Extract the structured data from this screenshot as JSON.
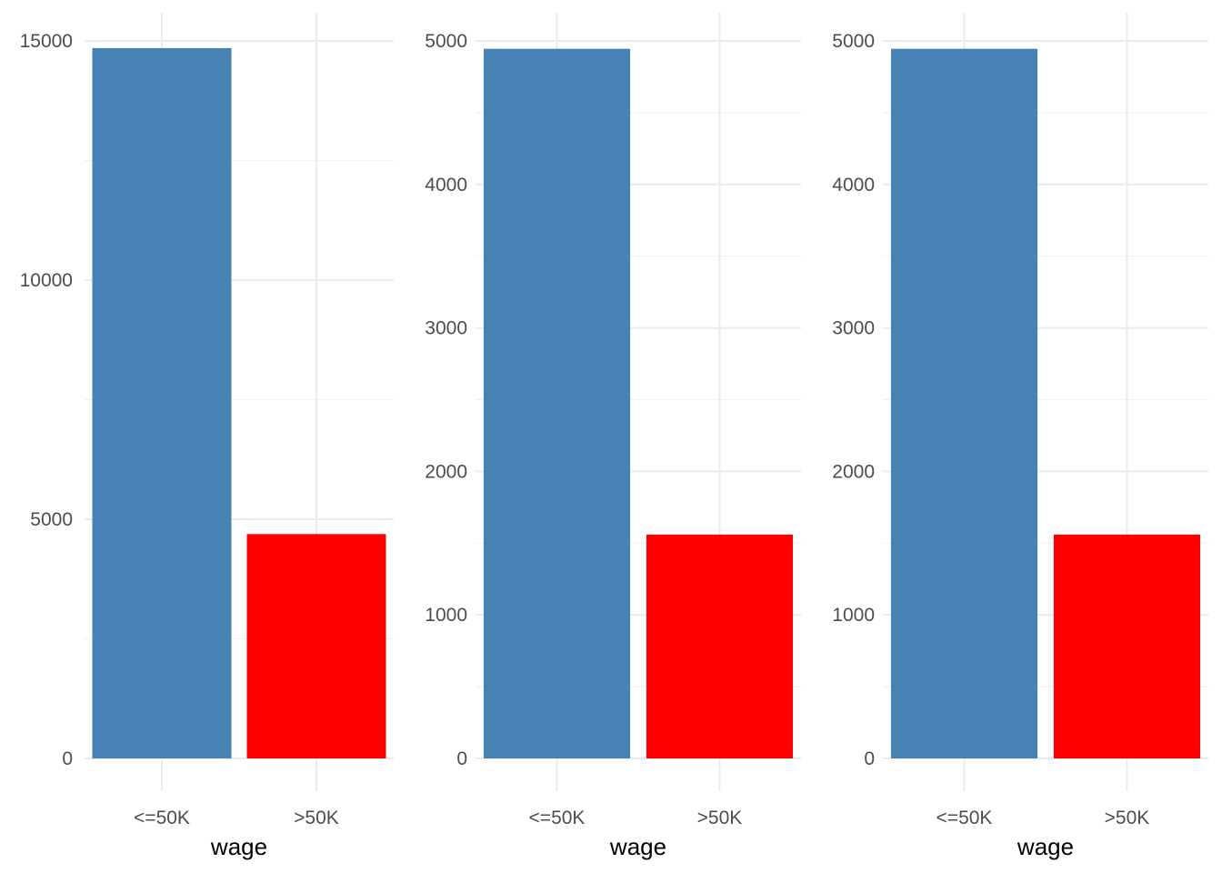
{
  "chart_data": [
    {
      "type": "bar",
      "categories": [
        "<=50K",
        ">50K"
      ],
      "values": [
        14850,
        4690
      ],
      "colors": [
        "#4682B4",
        "#FF0000"
      ],
      "xlabel": "wage",
      "ylabel": "",
      "ylim": [
        0,
        15000
      ],
      "yticks": [
        0,
        5000,
        10000,
        15000
      ],
      "ytick_labels": [
        "0",
        "5000",
        "10000",
        "15000"
      ],
      "grid": true,
      "legend": "none"
    },
    {
      "type": "bar",
      "categories": [
        "<=50K",
        ">50K"
      ],
      "values": [
        4945,
        1560
      ],
      "colors": [
        "#4682B4",
        "#FF0000"
      ],
      "xlabel": "wage",
      "ylabel": "",
      "ylim": [
        0,
        5000
      ],
      "yticks": [
        0,
        1000,
        2000,
        3000,
        4000,
        5000
      ],
      "ytick_labels": [
        "0",
        "1000",
        "2000",
        "3000",
        "4000",
        "5000"
      ],
      "grid": true,
      "legend": "none"
    },
    {
      "type": "bar",
      "categories": [
        "<=50K",
        ">50K"
      ],
      "values": [
        4945,
        1560
      ],
      "colors": [
        "#4682B4",
        "#FF0000"
      ],
      "xlabel": "wage",
      "ylabel": "",
      "ylim": [
        0,
        5000
      ],
      "yticks": [
        0,
        1000,
        2000,
        3000,
        4000,
        5000
      ],
      "ytick_labels": [
        "0",
        "1000",
        "2000",
        "3000",
        "4000",
        "5000"
      ],
      "grid": true,
      "legend": "none"
    }
  ]
}
